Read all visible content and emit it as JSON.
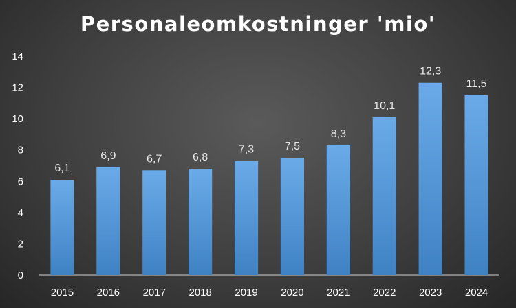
{
  "chart_data": {
    "type": "bar",
    "title": "Personaleomkostninger 'mio'",
    "categories": [
      "2015",
      "2016",
      "2017",
      "2018",
      "2019",
      "2020",
      "2021",
      "2022",
      "2023",
      "2024"
    ],
    "values": [
      6.1,
      6.9,
      6.7,
      6.8,
      7.3,
      7.5,
      8.3,
      10.1,
      12.3,
      11.5
    ],
    "data_labels": [
      "6,1",
      "6,9",
      "6,7",
      "6,8",
      "7,3",
      "7,5",
      "8,3",
      "10,1",
      "12,3",
      "11,5"
    ],
    "ylim": [
      0,
      14
    ],
    "yticks": [
      0,
      2,
      4,
      6,
      8,
      10,
      12,
      14
    ],
    "xlabel": "",
    "ylabel": "",
    "grid": false,
    "legend": "none",
    "bar_color": "#5b9bd5"
  }
}
